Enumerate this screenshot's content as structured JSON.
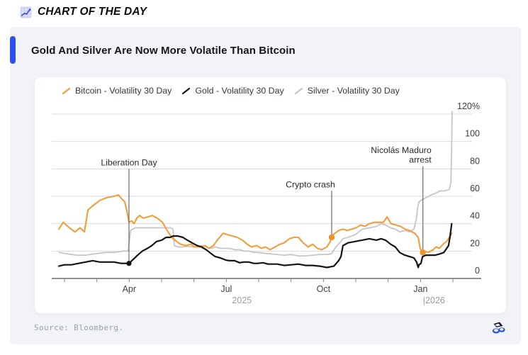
{
  "header": {
    "title": "CHART OF THE DAY"
  },
  "panel": {
    "title": "Gold And Silver Are Now More Volatile Than Bitcoin"
  },
  "colors": {
    "accent_blue": "#2c4ff0",
    "bitcoin_orange": "#F09E3C",
    "gold_black": "#141414",
    "silver_gray": "#c6c6c6",
    "page_panel_bg": "#f1f3f8"
  },
  "legend": [
    {
      "key": "bitcoin",
      "label": "Bitcoin - Volatility 30 Day",
      "color": "#F09E3C"
    },
    {
      "key": "gold",
      "label": "Gold - Volatility 30 Day",
      "color": "#141414"
    },
    {
      "key": "silver",
      "label": "Silver - Volatility 30 Day",
      "color": "#c6c6c6"
    }
  ],
  "chart_data": {
    "type": "line",
    "title": "Gold And Silver Are Now More Volatile Than Bitcoin",
    "xlabel": "",
    "ylabel": "",
    "ylim": [
      0,
      120
    ],
    "yticks": [
      0,
      20,
      40,
      60,
      80,
      100,
      120
    ],
    "ytick_top_suffix": "%",
    "grid": true,
    "legend_position": "top",
    "x_axis": {
      "tick_count": 13,
      "labeled_ticks": [
        {
          "index": 2,
          "label": "Apr"
        },
        {
          "index": 5,
          "label": "Jul"
        },
        {
          "index": 8,
          "label": "Oct"
        },
        {
          "index": 11,
          "label": "Jan"
        }
      ],
      "year_labels": [
        {
          "label": "2025",
          "tick_index": 5,
          "dx": 22
        },
        {
          "label": "|2026",
          "tick_index": 11,
          "dx": 19
        }
      ]
    },
    "series": [
      {
        "name": "Silver - Volatility 30 Day",
        "key": "silver",
        "color": "#c6c6c6",
        "width": 1.8,
        "points": [
          [
            0.0,
            19
          ],
          [
            0.02,
            18
          ],
          [
            0.045,
            17
          ],
          [
            0.068,
            17
          ],
          [
            0.092,
            18
          ],
          [
            0.117,
            19
          ],
          [
            0.14,
            19
          ],
          [
            0.164,
            20
          ],
          [
            0.176,
            20
          ],
          [
            0.182,
            35
          ],
          [
            0.194,
            37
          ],
          [
            0.212,
            37
          ],
          [
            0.23,
            37
          ],
          [
            0.248,
            37
          ],
          [
            0.266,
            37
          ],
          [
            0.284,
            37
          ],
          [
            0.29,
            36
          ],
          [
            0.293,
            24
          ],
          [
            0.302,
            23
          ],
          [
            0.315,
            23
          ],
          [
            0.326,
            23.5
          ],
          [
            0.338,
            23
          ],
          [
            0.351,
            23
          ],
          [
            0.362,
            24
          ],
          [
            0.374,
            23
          ],
          [
            0.387,
            22
          ],
          [
            0.397,
            23
          ],
          [
            0.41,
            22
          ],
          [
            0.423,
            22
          ],
          [
            0.433,
            22
          ],
          [
            0.446,
            21
          ],
          [
            0.459,
            21
          ],
          [
            0.469,
            20
          ],
          [
            0.482,
            20
          ],
          [
            0.495,
            19
          ],
          [
            0.505,
            19
          ],
          [
            0.518,
            18.5
          ],
          [
            0.531,
            18
          ],
          [
            0.536,
            18
          ],
          [
            0.554,
            17.5
          ],
          [
            0.572,
            17
          ],
          [
            0.59,
            17.5
          ],
          [
            0.608,
            16.5
          ],
          [
            0.626,
            16.5
          ],
          [
            0.644,
            17
          ],
          [
            0.662,
            17.5
          ],
          [
            0.68,
            17.5
          ],
          [
            0.692,
            18
          ],
          [
            0.703,
            23
          ],
          [
            0.716,
            27
          ],
          [
            0.721,
            29
          ],
          [
            0.734,
            30
          ],
          [
            0.752,
            32
          ],
          [
            0.77,
            36
          ],
          [
            0.788,
            37
          ],
          [
            0.806,
            38
          ],
          [
            0.818,
            40
          ],
          [
            0.829,
            39
          ],
          [
            0.842,
            37
          ],
          [
            0.854,
            36
          ],
          [
            0.865,
            34
          ],
          [
            0.878,
            35
          ],
          [
            0.89,
            34
          ],
          [
            0.901,
            36
          ],
          [
            0.908,
            44
          ],
          [
            0.91,
            51
          ],
          [
            0.914,
            56
          ],
          [
            0.919,
            57
          ],
          [
            0.932,
            59
          ],
          [
            0.944,
            61
          ],
          [
            0.955,
            62
          ],
          [
            0.968,
            64
          ],
          [
            0.98,
            64
          ],
          [
            0.991,
            65
          ],
          [
            0.995,
            70
          ],
          [
            0.997,
            95
          ],
          [
            0.998,
            122
          ]
        ]
      },
      {
        "name": "Bitcoin - Volatility 30 Day",
        "key": "bitcoin",
        "color": "#F09E3C",
        "width": 2.1,
        "points": [
          [
            0.0,
            36
          ],
          [
            0.011,
            41
          ],
          [
            0.027,
            37
          ],
          [
            0.041,
            34
          ],
          [
            0.054,
            37
          ],
          [
            0.065,
            34
          ],
          [
            0.074,
            50
          ],
          [
            0.086,
            53
          ],
          [
            0.104,
            57
          ],
          [
            0.122,
            59
          ],
          [
            0.14,
            60
          ],
          [
            0.151,
            61
          ],
          [
            0.16,
            58
          ],
          [
            0.167,
            56
          ],
          [
            0.173,
            49
          ],
          [
            0.178,
            41
          ],
          [
            0.185,
            42
          ],
          [
            0.191,
            40
          ],
          [
            0.198,
            44
          ],
          [
            0.205,
            46
          ],
          [
            0.214,
            44
          ],
          [
            0.227,
            45
          ],
          [
            0.237,
            46
          ],
          [
            0.25,
            44
          ],
          [
            0.263,
            41
          ],
          [
            0.273,
            36
          ],
          [
            0.286,
            30
          ],
          [
            0.299,
            27
          ],
          [
            0.309,
            25
          ],
          [
            0.322,
            24
          ],
          [
            0.335,
            25
          ],
          [
            0.345,
            23
          ],
          [
            0.358,
            23
          ],
          [
            0.371,
            24
          ],
          [
            0.381,
            22
          ],
          [
            0.392,
            24
          ],
          [
            0.405,
            29
          ],
          [
            0.417,
            33
          ],
          [
            0.428,
            32
          ],
          [
            0.441,
            31
          ],
          [
            0.453,
            30
          ],
          [
            0.466,
            28
          ],
          [
            0.478,
            25
          ],
          [
            0.489,
            23
          ],
          [
            0.502,
            24
          ],
          [
            0.514,
            22
          ],
          [
            0.525,
            23
          ],
          [
            0.536,
            21
          ],
          [
            0.549,
            23
          ],
          [
            0.561,
            25
          ],
          [
            0.572,
            26
          ],
          [
            0.585,
            29
          ],
          [
            0.597,
            30
          ],
          [
            0.608,
            30
          ],
          [
            0.62,
            26
          ],
          [
            0.633,
            23
          ],
          [
            0.644,
            25
          ],
          [
            0.656,
            22
          ],
          [
            0.667,
            21
          ],
          [
            0.68,
            23
          ],
          [
            0.689,
            27
          ],
          [
            0.692,
            31
          ],
          [
            0.701,
            33
          ],
          [
            0.71,
            35
          ],
          [
            0.721,
            36
          ],
          [
            0.732,
            35
          ],
          [
            0.743,
            36
          ],
          [
            0.754,
            37
          ],
          [
            0.766,
            39
          ],
          [
            0.777,
            38
          ],
          [
            0.788,
            40
          ],
          [
            0.802,
            41
          ],
          [
            0.813,
            41
          ],
          [
            0.824,
            41
          ],
          [
            0.833,
            45
          ],
          [
            0.843,
            40
          ],
          [
            0.856,
            39
          ],
          [
            0.867,
            38
          ],
          [
            0.879,
            36
          ],
          [
            0.89,
            35
          ],
          [
            0.903,
            33
          ],
          [
            0.912,
            30
          ],
          [
            0.917,
            22
          ],
          [
            0.923,
            19
          ],
          [
            0.928,
            20
          ],
          [
            0.937,
            19
          ],
          [
            0.95,
            21
          ],
          [
            0.957,
            23
          ],
          [
            0.966,
            22
          ],
          [
            0.975,
            25
          ],
          [
            0.984,
            27
          ],
          [
            0.989,
            29
          ],
          [
            0.997,
            33
          ]
        ]
      },
      {
        "name": "Gold - Volatility 30 Day",
        "key": "gold",
        "color": "#141414",
        "width": 2.2,
        "points": [
          [
            0.0,
            9
          ],
          [
            0.014,
            10
          ],
          [
            0.032,
            10
          ],
          [
            0.05,
            11
          ],
          [
            0.068,
            12
          ],
          [
            0.086,
            13
          ],
          [
            0.104,
            12
          ],
          [
            0.122,
            12
          ],
          [
            0.14,
            12
          ],
          [
            0.158,
            11
          ],
          [
            0.178,
            11
          ],
          [
            0.189,
            14
          ],
          [
            0.2,
            17
          ],
          [
            0.212,
            20
          ],
          [
            0.225,
            22
          ],
          [
            0.236,
            24
          ],
          [
            0.248,
            27
          ],
          [
            0.261,
            28
          ],
          [
            0.272,
            30
          ],
          [
            0.282,
            30
          ],
          [
            0.29,
            31
          ],
          [
            0.302,
            31
          ],
          [
            0.315,
            30
          ],
          [
            0.326,
            28
          ],
          [
            0.338,
            26
          ],
          [
            0.351,
            24
          ],
          [
            0.362,
            23
          ],
          [
            0.374,
            21
          ],
          [
            0.387,
            18
          ],
          [
            0.397,
            16
          ],
          [
            0.41,
            15
          ],
          [
            0.423,
            13.5
          ],
          [
            0.433,
            13
          ],
          [
            0.446,
            13
          ],
          [
            0.459,
            11.5
          ],
          [
            0.469,
            12
          ],
          [
            0.482,
            12
          ],
          [
            0.495,
            11
          ],
          [
            0.505,
            11
          ],
          [
            0.518,
            11.5
          ],
          [
            0.531,
            10.5
          ],
          [
            0.536,
            10.5
          ],
          [
            0.554,
            10.5
          ],
          [
            0.572,
            9.5
          ],
          [
            0.59,
            10
          ],
          [
            0.608,
            10.5
          ],
          [
            0.626,
            9.5
          ],
          [
            0.644,
            9.5
          ],
          [
            0.662,
            9
          ],
          [
            0.68,
            8
          ],
          [
            0.698,
            9
          ],
          [
            0.71,
            13
          ],
          [
            0.716,
            16
          ],
          [
            0.721,
            24
          ],
          [
            0.734,
            26
          ],
          [
            0.752,
            27
          ],
          [
            0.77,
            28
          ],
          [
            0.788,
            29
          ],
          [
            0.806,
            28
          ],
          [
            0.818,
            29
          ],
          [
            0.829,
            28
          ],
          [
            0.842,
            25
          ],
          [
            0.854,
            23
          ],
          [
            0.865,
            19
          ],
          [
            0.878,
            17
          ],
          [
            0.89,
            16
          ],
          [
            0.901,
            15
          ],
          [
            0.908,
            12
          ],
          [
            0.912,
            8
          ],
          [
            0.914,
            10
          ],
          [
            0.919,
            11
          ],
          [
            0.923,
            16
          ],
          [
            0.932,
            17
          ],
          [
            0.944,
            17
          ],
          [
            0.955,
            17
          ],
          [
            0.968,
            18
          ],
          [
            0.977,
            19
          ],
          [
            0.982,
            21
          ],
          [
            0.989,
            24
          ],
          [
            0.993,
            31
          ],
          [
            0.997,
            40
          ]
        ]
      }
    ],
    "annotations": [
      {
        "label_lines": [
          "Liberation Day"
        ],
        "x": 0.178,
        "value": 11,
        "line_top": 80,
        "dot_color": "#141414",
        "dot_r": 3.6,
        "anchor": "middle",
        "dx": 0
      },
      {
        "label_lines": [
          "Crypto crash"
        ],
        "x": 0.6925,
        "value": 30,
        "line_top": 64,
        "dot_color": "#F09326",
        "dot_r": 4.2,
        "anchor": "middle",
        "dx": -30
      },
      {
        "label_lines": [
          "Nicolás Maduro",
          "arrest"
        ],
        "x": 0.9239,
        "value": 19,
        "line_top": 82,
        "dot_color": "#F09326",
        "dot_r": 4.2,
        "anchor": "end",
        "dx": 12
      }
    ]
  },
  "footer": {
    "source": "Source: Bloomberg."
  }
}
